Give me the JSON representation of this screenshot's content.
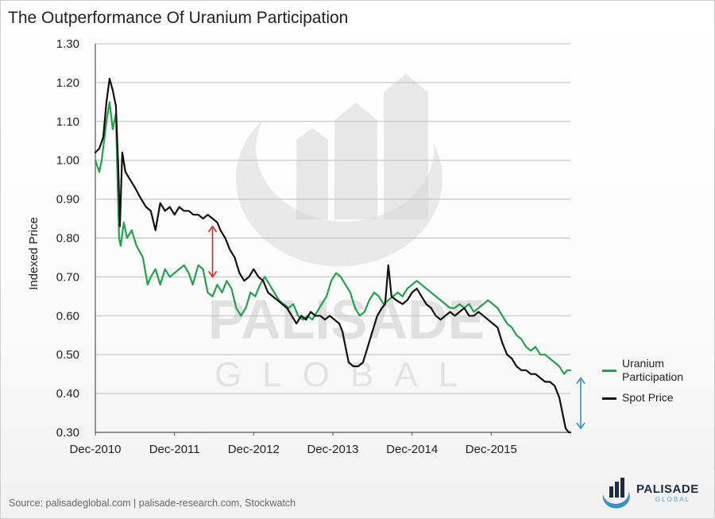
{
  "title": "The Outperformance Of Uranium Participation",
  "source": "Source: palisadeglobal.com  |  palisade-research.com, Stockwatch",
  "watermark": {
    "word1": "PALISADE",
    "word2": "GLOBAL"
  },
  "logo": {
    "name": "PALISADE",
    "sub": "GLOBAL"
  },
  "colors": {
    "uranium": "#22a24a",
    "spot": "#111111",
    "red_arrow": "#e02020",
    "blue_arrow": "#3a8fc8",
    "grid": "#bdbdbd"
  },
  "chart_data": {
    "type": "line",
    "title": "The Outperformance Of Uranium Participation",
    "xlabel": "",
    "ylabel": "Indexed Price",
    "x_range": [
      2010.92,
      2016.92
    ],
    "ylim": [
      0.3,
      1.3
    ],
    "y_ticks": [
      "0.30",
      "0.40",
      "0.50",
      "0.60",
      "0.70",
      "0.80",
      "0.90",
      "1.00",
      "1.10",
      "1.20",
      "1.30"
    ],
    "x_tick_labels": [
      {
        "x": 2010.92,
        "label": "Dec-2010"
      },
      {
        "x": 2011.92,
        "label": "Dec-2011"
      },
      {
        "x": 2012.92,
        "label": "Dec-2012"
      },
      {
        "x": 2013.92,
        "label": "Dec-2013"
      },
      {
        "x": 2014.92,
        "label": "Dec-2014"
      },
      {
        "x": 2015.92,
        "label": "Dec-2015"
      }
    ],
    "grid": true,
    "legend_position": "right",
    "series": [
      {
        "name": "Uranium Participation",
        "color": "#22a24a",
        "points": [
          [
            2010.92,
            1.0
          ],
          [
            2010.97,
            0.97
          ],
          [
            2011.0,
            1.0
          ],
          [
            2011.06,
            1.1
          ],
          [
            2011.1,
            1.15
          ],
          [
            2011.14,
            1.08
          ],
          [
            2011.18,
            1.12
          ],
          [
            2011.2,
            0.95
          ],
          [
            2011.22,
            0.8
          ],
          [
            2011.24,
            0.78
          ],
          [
            2011.28,
            0.84
          ],
          [
            2011.32,
            0.8
          ],
          [
            2011.38,
            0.82
          ],
          [
            2011.44,
            0.78
          ],
          [
            2011.52,
            0.75
          ],
          [
            2011.58,
            0.68
          ],
          [
            2011.62,
            0.7
          ],
          [
            2011.68,
            0.72
          ],
          [
            2011.74,
            0.68
          ],
          [
            2011.8,
            0.72
          ],
          [
            2011.86,
            0.7
          ],
          [
            2011.92,
            0.71
          ],
          [
            2011.98,
            0.72
          ],
          [
            2012.04,
            0.73
          ],
          [
            2012.1,
            0.71
          ],
          [
            2012.15,
            0.68
          ],
          [
            2012.22,
            0.73
          ],
          [
            2012.28,
            0.72
          ],
          [
            2012.34,
            0.66
          ],
          [
            2012.4,
            0.65
          ],
          [
            2012.46,
            0.68
          ],
          [
            2012.52,
            0.66
          ],
          [
            2012.58,
            0.69
          ],
          [
            2012.64,
            0.67
          ],
          [
            2012.7,
            0.62
          ],
          [
            2012.76,
            0.6
          ],
          [
            2012.82,
            0.62
          ],
          [
            2012.88,
            0.66
          ],
          [
            2012.94,
            0.65
          ],
          [
            2013.0,
            0.68
          ],
          [
            2013.06,
            0.7
          ],
          [
            2013.12,
            0.68
          ],
          [
            2013.18,
            0.66
          ],
          [
            2013.24,
            0.64
          ],
          [
            2013.3,
            0.63
          ],
          [
            2013.36,
            0.62
          ],
          [
            2013.42,
            0.63
          ],
          [
            2013.48,
            0.6
          ],
          [
            2013.54,
            0.59
          ],
          [
            2013.6,
            0.6
          ],
          [
            2013.66,
            0.59
          ],
          [
            2013.72,
            0.61
          ],
          [
            2013.78,
            0.63
          ],
          [
            2013.84,
            0.65
          ],
          [
            2013.9,
            0.69
          ],
          [
            2013.96,
            0.71
          ],
          [
            2014.02,
            0.7
          ],
          [
            2014.08,
            0.68
          ],
          [
            2014.14,
            0.66
          ],
          [
            2014.2,
            0.62
          ],
          [
            2014.26,
            0.6
          ],
          [
            2014.32,
            0.61
          ],
          [
            2014.38,
            0.64
          ],
          [
            2014.44,
            0.66
          ],
          [
            2014.5,
            0.65
          ],
          [
            2014.56,
            0.63
          ],
          [
            2014.62,
            0.64
          ],
          [
            2014.68,
            0.65
          ],
          [
            2014.74,
            0.66
          ],
          [
            2014.8,
            0.65
          ],
          [
            2014.86,
            0.67
          ],
          [
            2014.92,
            0.68
          ],
          [
            2014.98,
            0.69
          ],
          [
            2015.04,
            0.68
          ],
          [
            2015.1,
            0.67
          ],
          [
            2015.16,
            0.66
          ],
          [
            2015.22,
            0.65
          ],
          [
            2015.28,
            0.64
          ],
          [
            2015.34,
            0.63
          ],
          [
            2015.4,
            0.62
          ],
          [
            2015.46,
            0.62
          ],
          [
            2015.52,
            0.63
          ],
          [
            2015.58,
            0.62
          ],
          [
            2015.64,
            0.63
          ],
          [
            2015.7,
            0.61
          ],
          [
            2015.76,
            0.62
          ],
          [
            2015.82,
            0.63
          ],
          [
            2015.88,
            0.64
          ],
          [
            2015.94,
            0.63
          ],
          [
            2016.0,
            0.62
          ],
          [
            2016.06,
            0.6
          ],
          [
            2016.12,
            0.58
          ],
          [
            2016.18,
            0.57
          ],
          [
            2016.24,
            0.55
          ],
          [
            2016.3,
            0.54
          ],
          [
            2016.36,
            0.52
          ],
          [
            2016.42,
            0.51
          ],
          [
            2016.48,
            0.52
          ],
          [
            2016.54,
            0.5
          ],
          [
            2016.6,
            0.5
          ],
          [
            2016.66,
            0.49
          ],
          [
            2016.72,
            0.48
          ],
          [
            2016.78,
            0.47
          ],
          [
            2016.84,
            0.45
          ],
          [
            2016.88,
            0.46
          ],
          [
            2016.92,
            0.46
          ]
        ]
      },
      {
        "name": "Spot Price",
        "color": "#111111",
        "points": [
          [
            2010.92,
            1.02
          ],
          [
            2010.97,
            1.03
          ],
          [
            2011.02,
            1.06
          ],
          [
            2011.06,
            1.15
          ],
          [
            2011.1,
            1.21
          ],
          [
            2011.14,
            1.18
          ],
          [
            2011.18,
            1.14
          ],
          [
            2011.21,
            0.98
          ],
          [
            2011.23,
            0.83
          ],
          [
            2011.26,
            1.02
          ],
          [
            2011.3,
            0.97
          ],
          [
            2011.36,
            0.95
          ],
          [
            2011.42,
            0.93
          ],
          [
            2011.5,
            0.9
          ],
          [
            2011.56,
            0.88
          ],
          [
            2011.62,
            0.87
          ],
          [
            2011.68,
            0.82
          ],
          [
            2011.74,
            0.89
          ],
          [
            2011.8,
            0.87
          ],
          [
            2011.86,
            0.88
          ],
          [
            2011.92,
            0.86
          ],
          [
            2011.98,
            0.88
          ],
          [
            2012.04,
            0.87
          ],
          [
            2012.1,
            0.87
          ],
          [
            2012.16,
            0.86
          ],
          [
            2012.22,
            0.86
          ],
          [
            2012.28,
            0.85
          ],
          [
            2012.34,
            0.86
          ],
          [
            2012.4,
            0.85
          ],
          [
            2012.46,
            0.84
          ],
          [
            2012.5,
            0.82
          ],
          [
            2012.56,
            0.8
          ],
          [
            2012.62,
            0.77
          ],
          [
            2012.68,
            0.75
          ],
          [
            2012.74,
            0.71
          ],
          [
            2012.8,
            0.69
          ],
          [
            2012.86,
            0.7
          ],
          [
            2012.92,
            0.72
          ],
          [
            2012.98,
            0.7
          ],
          [
            2013.04,
            0.69
          ],
          [
            2013.1,
            0.66
          ],
          [
            2013.16,
            0.65
          ],
          [
            2013.22,
            0.64
          ],
          [
            2013.28,
            0.63
          ],
          [
            2013.34,
            0.62
          ],
          [
            2013.4,
            0.6
          ],
          [
            2013.46,
            0.58
          ],
          [
            2013.52,
            0.6
          ],
          [
            2013.58,
            0.59
          ],
          [
            2013.64,
            0.61
          ],
          [
            2013.7,
            0.6
          ],
          [
            2013.76,
            0.6
          ],
          [
            2013.82,
            0.59
          ],
          [
            2013.88,
            0.6
          ],
          [
            2013.94,
            0.59
          ],
          [
            2014.0,
            0.58
          ],
          [
            2014.04,
            0.56
          ],
          [
            2014.08,
            0.52
          ],
          [
            2014.12,
            0.48
          ],
          [
            2014.18,
            0.47
          ],
          [
            2014.24,
            0.47
          ],
          [
            2014.3,
            0.48
          ],
          [
            2014.36,
            0.52
          ],
          [
            2014.42,
            0.56
          ],
          [
            2014.48,
            0.6
          ],
          [
            2014.54,
            0.62
          ],
          [
            2014.58,
            0.63
          ],
          [
            2014.62,
            0.73
          ],
          [
            2014.66,
            0.65
          ],
          [
            2014.72,
            0.64
          ],
          [
            2014.8,
            0.63
          ],
          [
            2014.86,
            0.64
          ],
          [
            2014.92,
            0.66
          ],
          [
            2014.98,
            0.67
          ],
          [
            2015.04,
            0.65
          ],
          [
            2015.1,
            0.63
          ],
          [
            2015.16,
            0.62
          ],
          [
            2015.22,
            0.6
          ],
          [
            2015.28,
            0.59
          ],
          [
            2015.34,
            0.6
          ],
          [
            2015.4,
            0.61
          ],
          [
            2015.46,
            0.6
          ],
          [
            2015.52,
            0.61
          ],
          [
            2015.58,
            0.62
          ],
          [
            2015.64,
            0.6
          ],
          [
            2015.7,
            0.6
          ],
          [
            2015.76,
            0.61
          ],
          [
            2015.82,
            0.6
          ],
          [
            2015.88,
            0.59
          ],
          [
            2015.94,
            0.58
          ],
          [
            2016.0,
            0.57
          ],
          [
            2016.06,
            0.53
          ],
          [
            2016.12,
            0.5
          ],
          [
            2016.18,
            0.49
          ],
          [
            2016.24,
            0.47
          ],
          [
            2016.3,
            0.46
          ],
          [
            2016.36,
            0.46
          ],
          [
            2016.42,
            0.45
          ],
          [
            2016.48,
            0.45
          ],
          [
            2016.54,
            0.44
          ],
          [
            2016.6,
            0.43
          ],
          [
            2016.66,
            0.43
          ],
          [
            2016.72,
            0.42
          ],
          [
            2016.78,
            0.39
          ],
          [
            2016.82,
            0.35
          ],
          [
            2016.86,
            0.31
          ],
          [
            2016.9,
            0.3
          ],
          [
            2016.92,
            0.3
          ]
        ]
      }
    ],
    "annotations": [
      {
        "type": "double-arrow",
        "x": 2012.4,
        "y_from": 0.7,
        "y_to": 0.83,
        "color": "#e02020"
      },
      {
        "type": "double-arrow",
        "x": 2017.05,
        "y_from": 0.31,
        "y_to": 0.44,
        "color": "#3a8fc8"
      }
    ]
  }
}
